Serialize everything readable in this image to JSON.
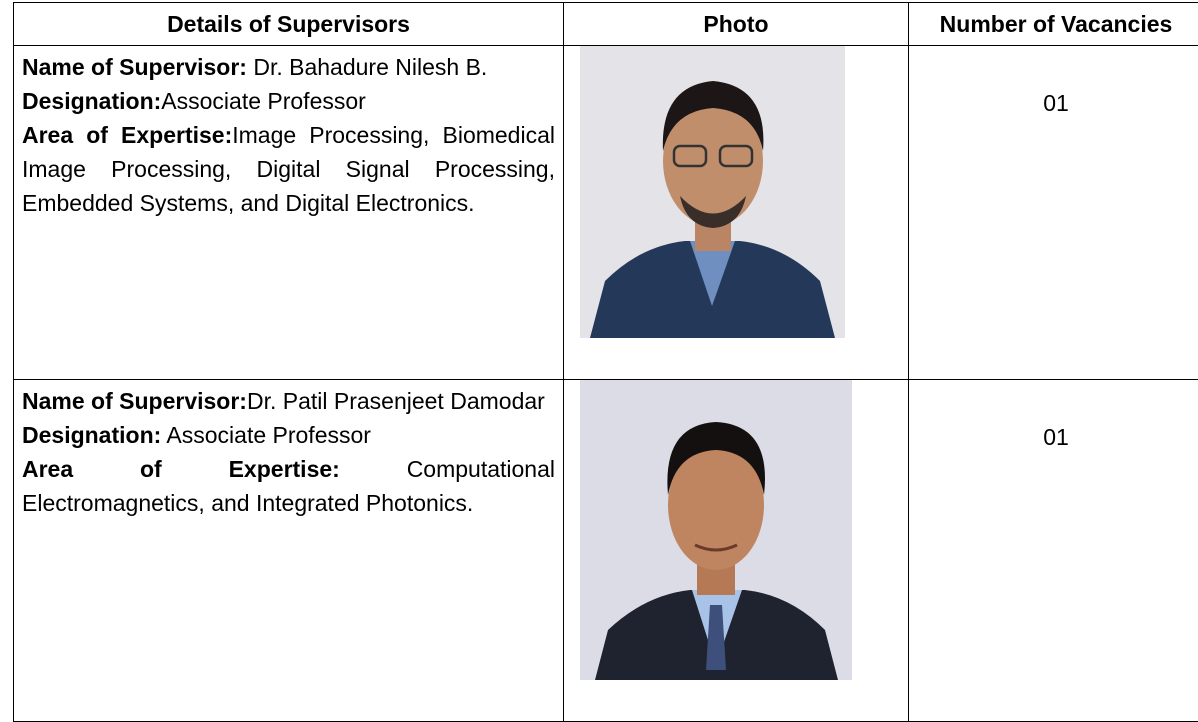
{
  "table": {
    "headers": [
      "Details of Supervisors",
      "Photo",
      "Number of Vacancies"
    ],
    "rows": [
      {
        "name_label": "Name of Supervisor:",
        "name": "Dr. Bahadure Nilesh B.",
        "designation_label": "Designation:",
        "designation": "Associate Professor",
        "expertise_label": "Area of Expertise:",
        "expertise": "Image Processing, Biomedical Image Processing, Digital Signal Processing, Embedded Systems, and Digital Electronics.",
        "vacancies": "01"
      },
      {
        "name_label": "Name of Supervisor:",
        "name": "Dr. Patil Prasenjeet Damodar",
        "designation_label": "Designation:",
        "designation": "Associate Professor",
        "expertise_label": "Area of Expertise:",
        "expertise": "Computational Electromagnetics, and Integrated Photonics.",
        "vacancies": "01"
      }
    ]
  }
}
